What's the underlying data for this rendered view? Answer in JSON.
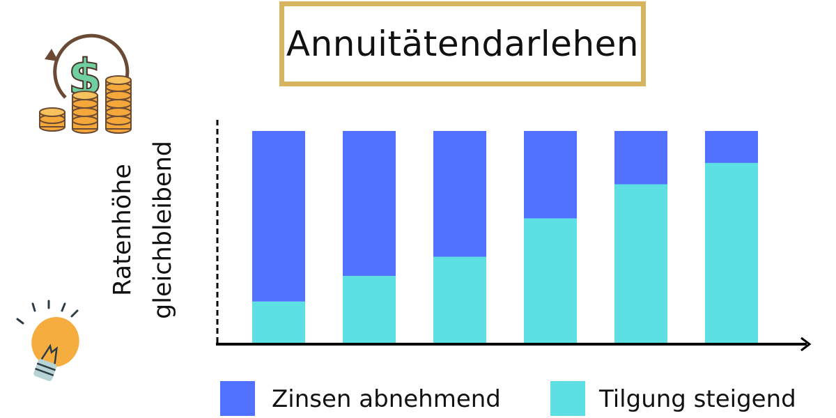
{
  "title": "Annuitätendarlehen",
  "ylabel_lines": [
    "Ratenhöhe",
    "gleichbleibend"
  ],
  "icons": [
    "money-cycle-icon",
    "lightbulb-icon"
  ],
  "colors": {
    "zinsen": "#5072ff",
    "tilgung": "#5ce0e3",
    "title_border": "#d9b45e",
    "axis": "#000000"
  },
  "chart_data": {
    "type": "bar",
    "stacked": true,
    "categories": [
      "",
      "",
      "",
      "",
      "",
      ""
    ],
    "series": [
      {
        "name": "Tilgung steigend",
        "values": [
          20,
          32,
          41,
          59,
          75,
          85
        ]
      },
      {
        "name": "Zinsen abnehmend",
        "values": [
          80,
          68,
          59,
          41,
          25,
          15
        ]
      }
    ],
    "title": "Annuitätendarlehen",
    "xlabel": "",
    "ylabel": "Ratenhöhe gleichbleibend",
    "ylim": [
      0,
      100
    ],
    "grid": false,
    "legend": "bottom"
  },
  "legend": [
    {
      "label": "Zinsen abnehmend",
      "color": "#5072ff"
    },
    {
      "label": "Tilgung steigend",
      "color": "#5ce0e3"
    }
  ]
}
